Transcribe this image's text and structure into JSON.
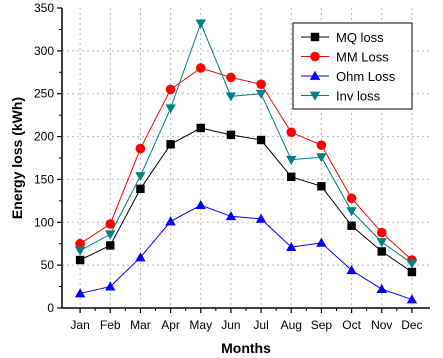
{
  "chart_data": {
    "type": "line",
    "title": "",
    "xlabel": "Months",
    "ylabel": "Energy loss (kWh)",
    "categories": [
      "Jan",
      "Feb",
      "Mar",
      "Apr",
      "May",
      "Jun",
      "Jul",
      "Aug",
      "Sep",
      "Oct",
      "Nov",
      "Dec"
    ],
    "ylim": [
      0,
      350
    ],
    "yticks": [
      0,
      50,
      100,
      150,
      200,
      250,
      300,
      350
    ],
    "grid": true,
    "legend_position": "top-right",
    "series": [
      {
        "name": "MQ loss",
        "color": "#000000",
        "marker": "square",
        "values": [
          56,
          73,
          139,
          191,
          210,
          202,
          196,
          153,
          142,
          96,
          66,
          42
        ]
      },
      {
        "name": "MM Loss",
        "color": "#ff0000",
        "marker": "circle",
        "values": [
          75,
          98,
          186,
          255,
          280,
          269,
          261,
          205,
          190,
          128,
          88,
          56
        ]
      },
      {
        "name": "Ohm Loss",
        "color": "#0000ff",
        "marker": "triangle-up",
        "values": [
          17,
          25,
          59,
          101,
          120,
          107,
          104,
          71,
          76,
          44,
          22,
          10
        ]
      },
      {
        "name": "Inv loss",
        "color": "#008080",
        "marker": "triangle-down",
        "values": [
          67,
          86,
          154,
          233,
          332,
          247,
          250,
          173,
          176,
          113,
          77,
          52
        ]
      }
    ]
  }
}
